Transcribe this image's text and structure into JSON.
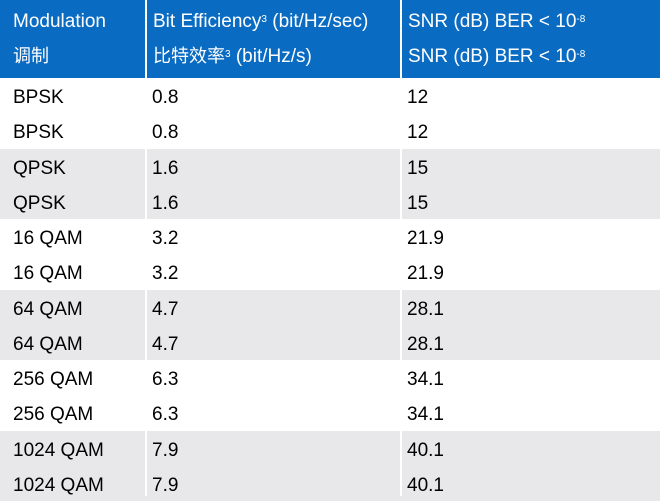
{
  "header": {
    "modulation_en": "Modulation",
    "modulation_zh": "调制",
    "bit_eff_en": "Bit Efficiency",
    "bit_eff_en_sup": "3",
    "bit_eff_en_unit": " (bit/Hz/sec)",
    "bit_eff_zh": "比特效率",
    "bit_eff_zh_sup": "3",
    "bit_eff_zh_unit": " (bit/Hz/s)",
    "snr_en": "SNR (dB) BER < 10",
    "snr_en_sup": "-8",
    "snr_zh": "SNR (dB) BER < 10",
    "snr_zh_sup": "-8"
  },
  "rows": [
    {
      "modulation": "BPSK",
      "bit_efficiency": "0.8",
      "snr": "12"
    },
    {
      "modulation": "BPSK",
      "bit_efficiency": "0.8",
      "snr": "12"
    },
    {
      "modulation": "QPSK",
      "bit_efficiency": "1.6",
      "snr": "15"
    },
    {
      "modulation": "QPSK",
      "bit_efficiency": "1.6",
      "snr": "15"
    },
    {
      "modulation": "16 QAM",
      "bit_efficiency": "3.2",
      "snr": "21.9"
    },
    {
      "modulation": "16 QAM",
      "bit_efficiency": "3.2",
      "snr": "21.9"
    },
    {
      "modulation": "64 QAM",
      "bit_efficiency": "4.7",
      "snr": "28.1"
    },
    {
      "modulation": "64 QAM",
      "bit_efficiency": "4.7",
      "snr": "28.1"
    },
    {
      "modulation": "256 QAM",
      "bit_efficiency": "6.3",
      "snr": "34.1"
    },
    {
      "modulation": "256 QAM",
      "bit_efficiency": "6.3",
      "snr": "34.1"
    },
    {
      "modulation": "1024 QAM",
      "bit_efficiency": "7.9",
      "snr": "40.1"
    },
    {
      "modulation": "1024 QAM",
      "bit_efficiency": "7.9",
      "snr": "40.1"
    }
  ],
  "colors": {
    "header_bg": "#0a6bc2",
    "header_text": "#ffffff",
    "band_white": "#ffffff",
    "band_grey": "#e8e8ea",
    "cell_text": "#000000"
  }
}
